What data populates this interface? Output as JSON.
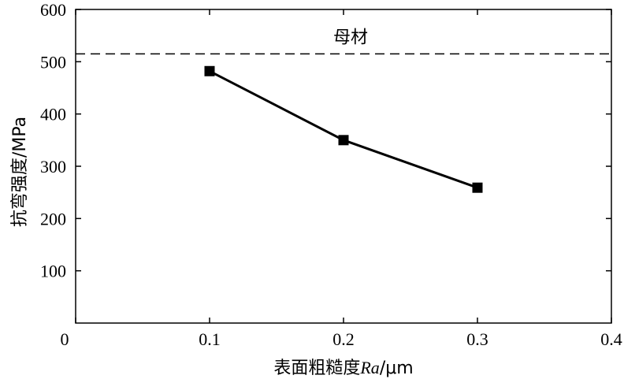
{
  "chart_data": {
    "type": "line",
    "xlabel": "表面粗糙度Ra/μm",
    "ylabel": "抗弯强度/MPa",
    "xlim": [
      0,
      0.4
    ],
    "ylim": [
      0,
      600
    ],
    "x_ticks": [
      0,
      0.1,
      0.2,
      0.3,
      0.4
    ],
    "x_tick_labels": [
      "0",
      "0.1",
      "0.2",
      "0.3",
      "0.4"
    ],
    "y_ticks": [
      100,
      200,
      300,
      400,
      500,
      600
    ],
    "y_tick_labels": [
      "100",
      "200",
      "300",
      "400",
      "500",
      "600"
    ],
    "grid": false,
    "series": [
      {
        "x": [
          0.1,
          0.2,
          0.3
        ],
        "values": [
          482,
          350,
          259
        ],
        "marker": "square",
        "color": "#000000"
      }
    ],
    "reference_line": {
      "y": 515,
      "style": "dashed",
      "label": "母材"
    }
  }
}
